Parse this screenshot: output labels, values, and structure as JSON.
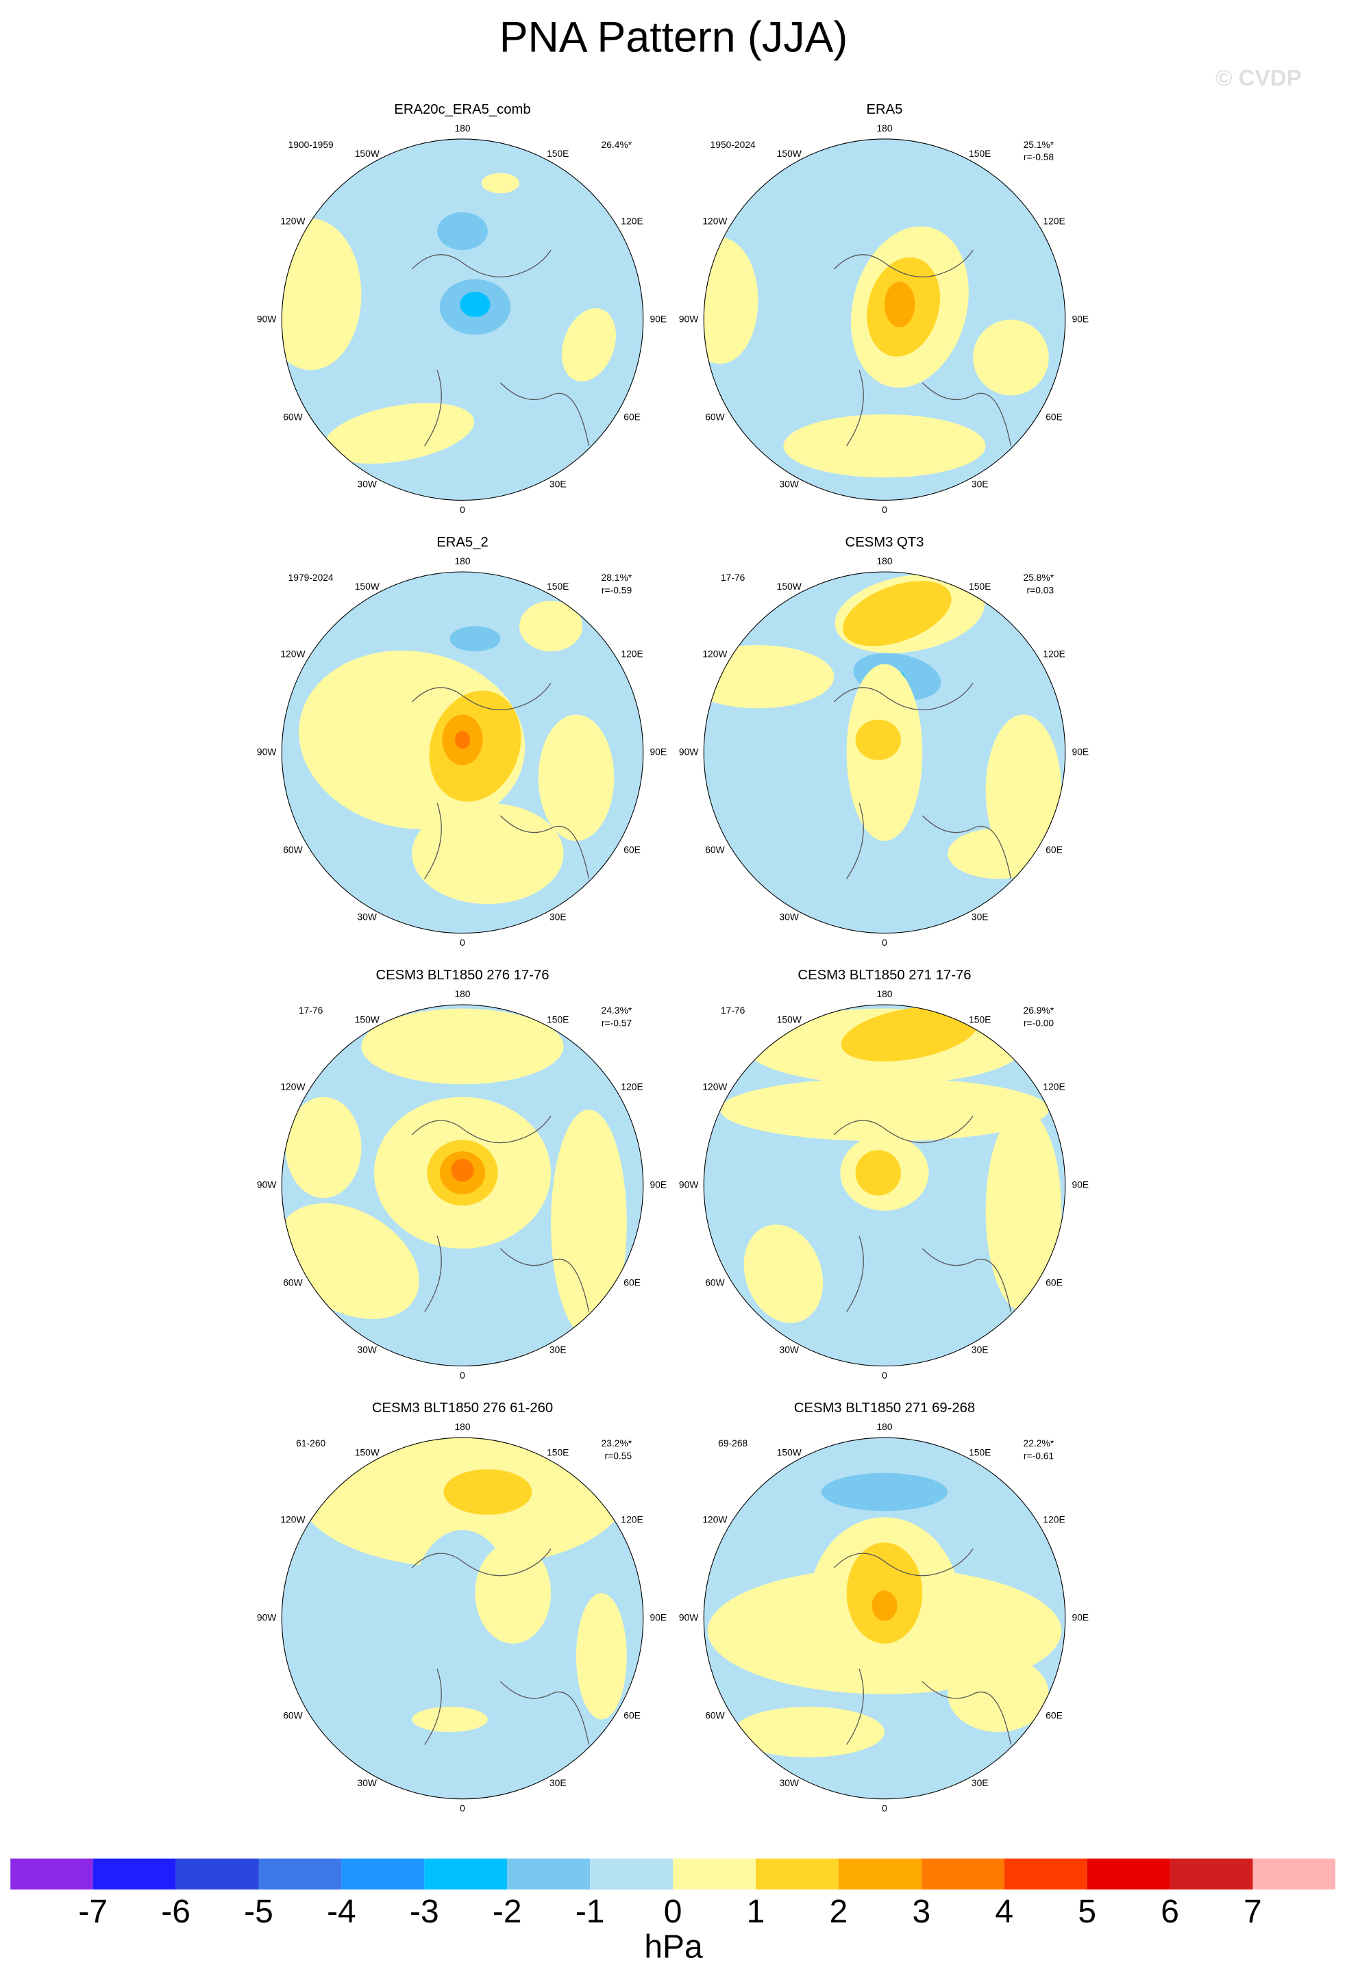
{
  "title": "PNA Pattern (JJA)",
  "watermark": "© CVDP",
  "longitude_labels": [
    "180",
    "150E",
    "120E",
    "90E",
    "60E",
    "30E",
    "0",
    "30W",
    "60W",
    "90W",
    "120W",
    "150W"
  ],
  "panels": [
    {
      "title": "ERA20c_ERA5_comb",
      "period": "1900-1959",
      "variance": "26.4%*"
    },
    {
      "title": "ERA5",
      "period": "1950-2024",
      "variance": "25.1%*",
      "correlation": "r=-0.58"
    },
    {
      "title": "ERA5_2",
      "period": "1979-2024",
      "variance": "28.1%*",
      "correlation": "r=-0.59"
    },
    {
      "title": "CESM3 QT3",
      "period": "17-76",
      "variance": "25.8%*",
      "correlation": "r=0.03"
    },
    {
      "title": "CESM3 BLT1850 276 17-76",
      "period": "17-76",
      "variance": "24.3%*",
      "correlation": "r=-0.57"
    },
    {
      "title": "CESM3 BLT1850 271 17-76",
      "period": "17-76",
      "variance": "26.9%*",
      "correlation": "r=-0.00"
    },
    {
      "title": "CESM3 BLT1850 276 61-260",
      "period": "61-260",
      "variance": "23.2%*",
      "correlation": "r=0.55"
    },
    {
      "title": "CESM3 BLT1850 271 69-268",
      "period": "69-268",
      "variance": "22.2%*",
      "correlation": "r=-0.61"
    }
  ],
  "colorbar": {
    "colors": [
      "#8c28e6",
      "#1e1eff",
      "#2a46e0",
      "#3c78e8",
      "#1e96ff",
      "#00c0ff",
      "#78c8f0",
      "#b4e0f4",
      "#fffaa0",
      "#ffd528",
      "#ffaa00",
      "#ff7a00",
      "#ff3c00",
      "#e60000",
      "#d21e1e",
      "#ffb4b4"
    ],
    "ticks": [
      -7,
      -6,
      -5,
      -4,
      -3,
      -2,
      -1,
      0,
      1,
      2,
      3,
      4,
      5,
      6,
      7
    ],
    "label": "hPa"
  }
}
